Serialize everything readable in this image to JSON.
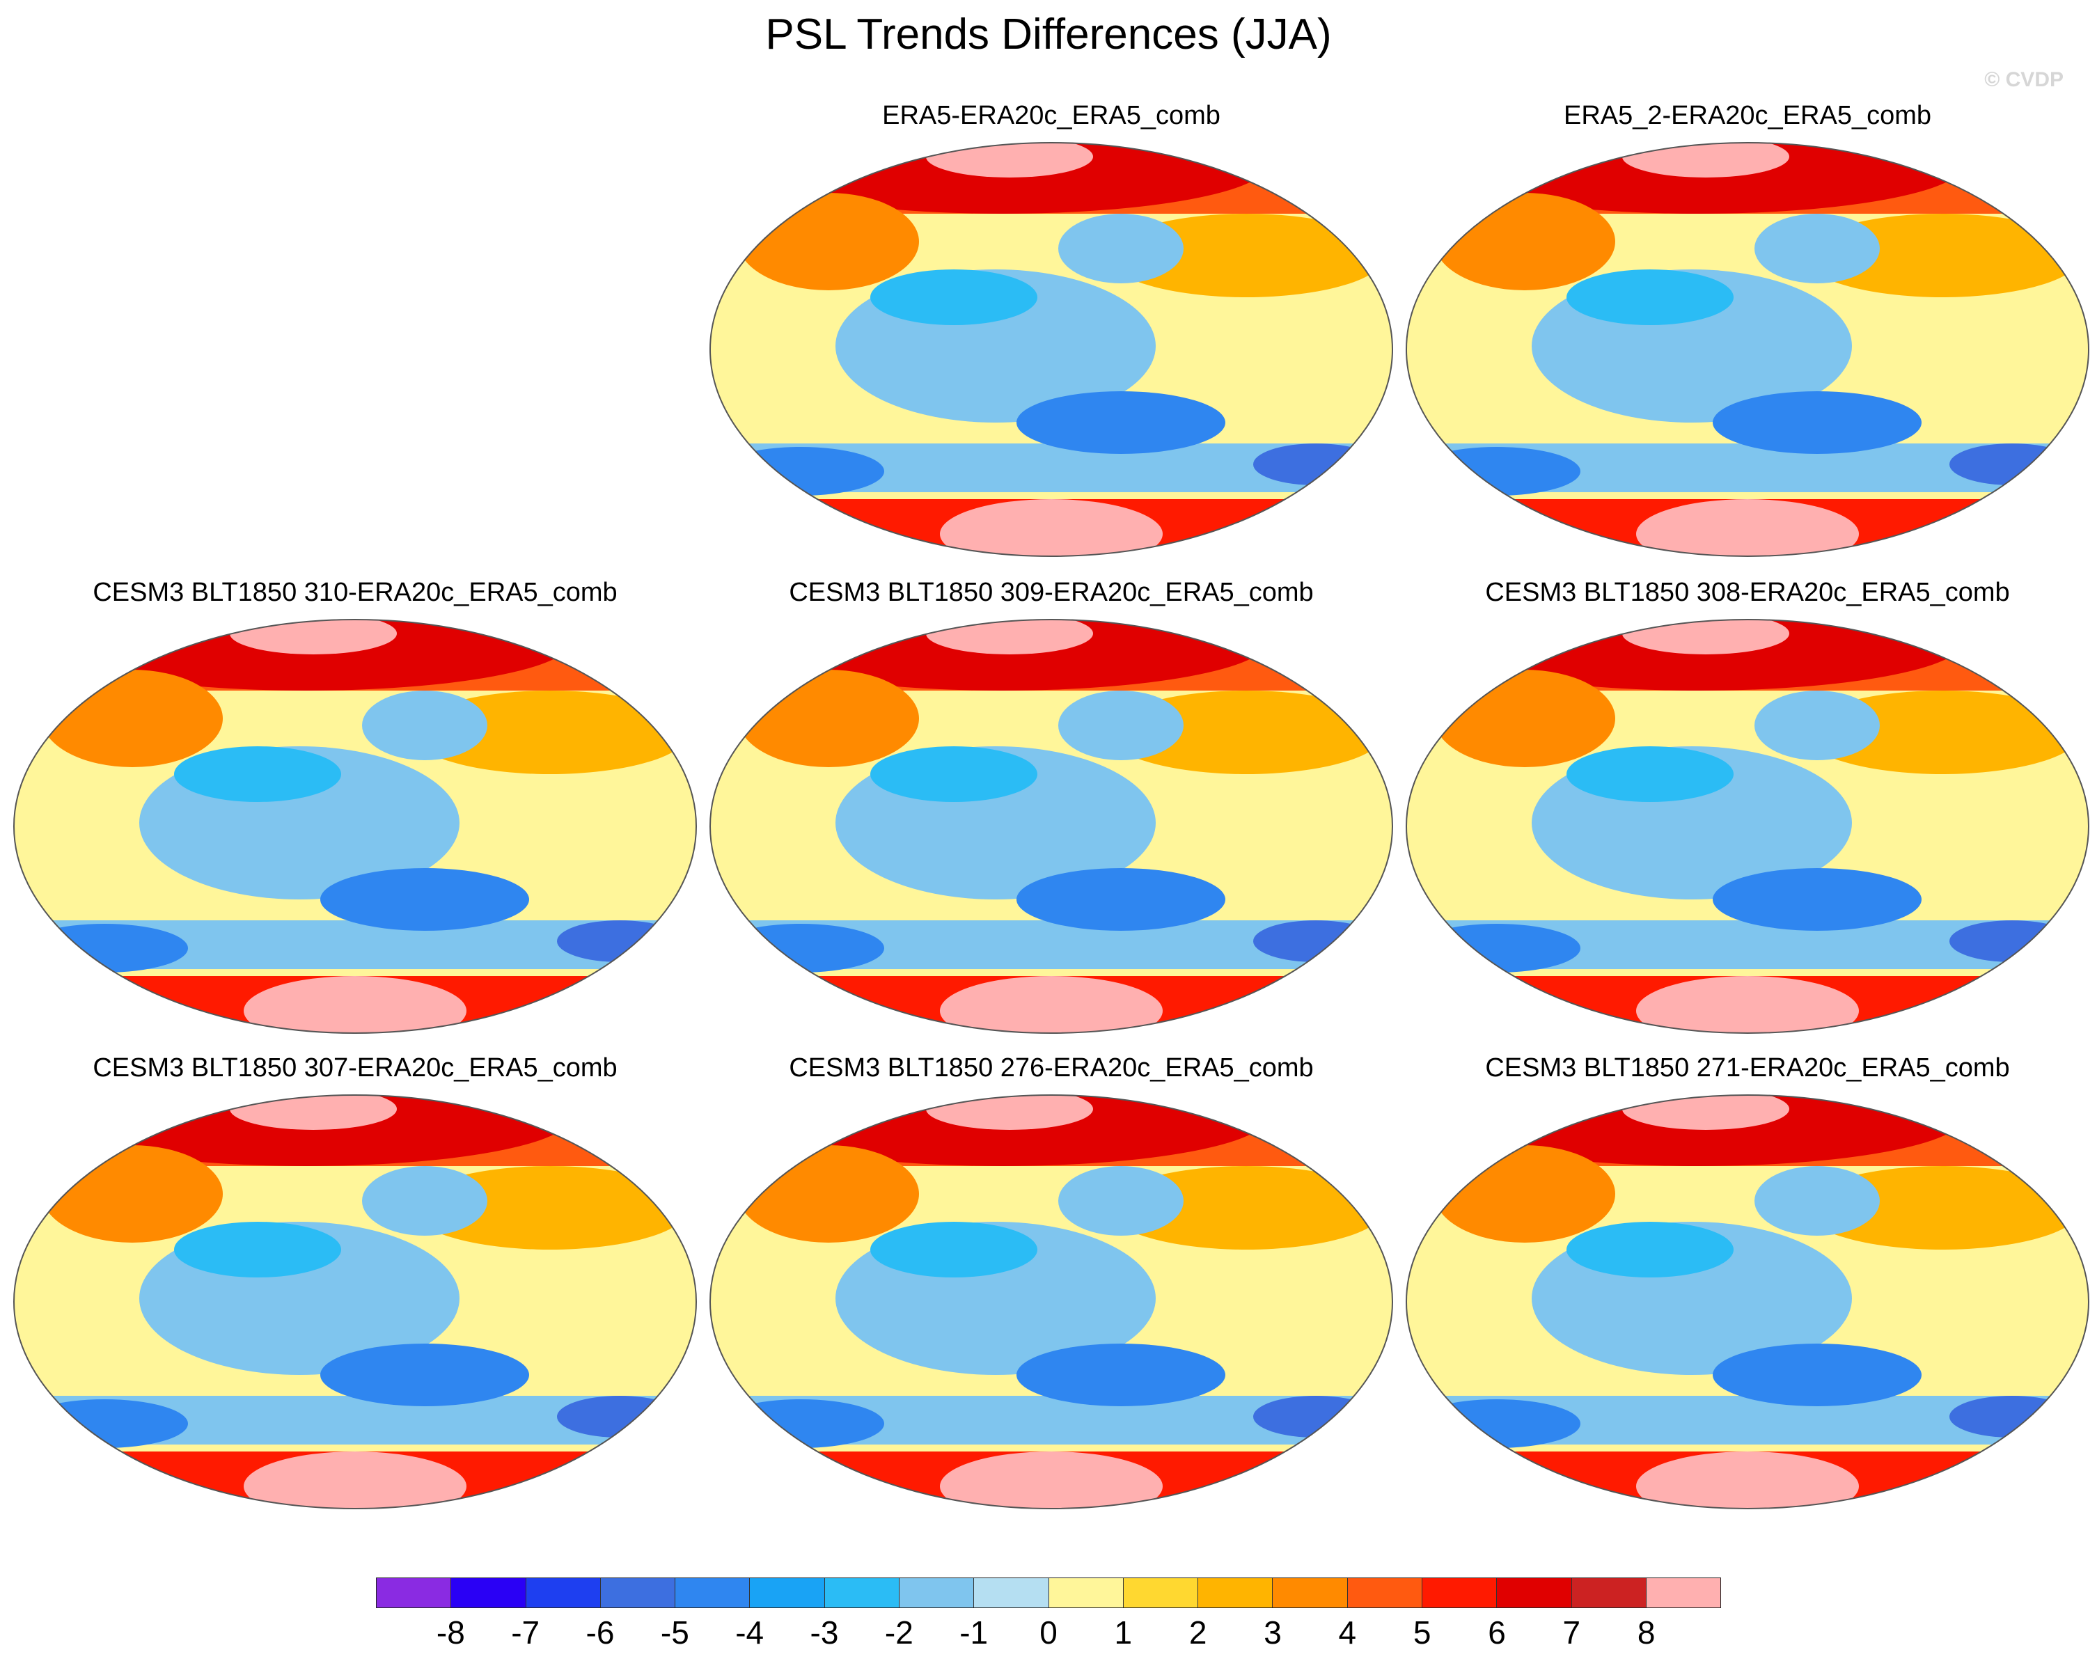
{
  "title": "PSL Trends Differences (JJA)",
  "watermark": "© CVDP",
  "panels": [
    {
      "title": "ERA5-ERA20c_ERA5_comb"
    },
    {
      "title": "ERA5_2-ERA20c_ERA5_comb"
    },
    {
      "title": "CESM3 BLT1850 310-ERA20c_ERA5_comb"
    },
    {
      "title": "CESM3 BLT1850 309-ERA20c_ERA5_comb"
    },
    {
      "title": "CESM3 BLT1850 308-ERA20c_ERA5_comb"
    },
    {
      "title": "CESM3 BLT1850 307-ERA20c_ERA5_comb"
    },
    {
      "title": "CESM3 BLT1850 276-ERA20c_ERA5_comb"
    },
    {
      "title": "CESM3 BLT1850 271-ERA20c_ERA5_comb"
    }
  ],
  "colorbar": {
    "ticks": [
      "-8",
      "-7",
      "-6",
      "-5",
      "-4",
      "-3",
      "-2",
      "-1",
      "0",
      "1",
      "2",
      "3",
      "4",
      "5",
      "6",
      "7",
      "8"
    ],
    "colors": [
      "#8a2be2",
      "#2a00f5",
      "#1e3ff0",
      "#3d6fe0",
      "#2f86f0",
      "#19a3f5",
      "#2bbcf5",
      "#7fc5ee",
      "#b5dff2",
      "#fff69a",
      "#ffd830",
      "#ffb400",
      "#ff8a00",
      "#ff5a10",
      "#ff1a00",
      "#e00000",
      "#cc2222",
      "#ffb0b0"
    ]
  },
  "legend": {
    "red": "#e83020",
    "yellow": "#fff69a",
    "blue": "#7fc5ee",
    "pink": "#ffb0b0"
  }
}
